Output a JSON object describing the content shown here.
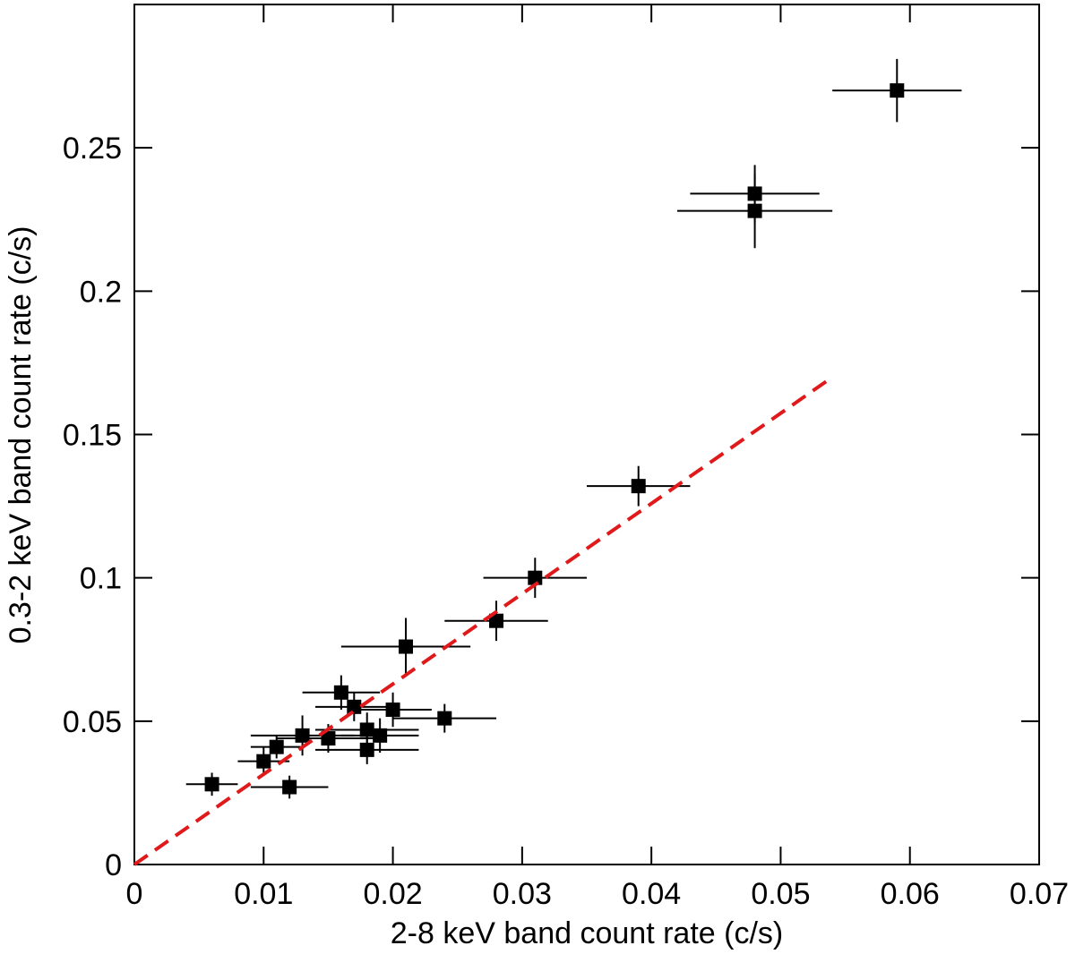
{
  "chart_data": {
    "type": "scatter",
    "xlabel": "2-8 keV band count rate (c/s)",
    "ylabel": "0.3-2 keV band count rate (c/s)",
    "x": [
      0.006,
      0.01,
      0.011,
      0.012,
      0.013,
      0.015,
      0.016,
      0.017,
      0.018,
      0.018,
      0.019,
      0.02,
      0.021,
      0.024,
      0.028,
      0.031,
      0.039,
      0.048,
      0.048,
      0.059
    ],
    "y": [
      0.028,
      0.036,
      0.041,
      0.027,
      0.045,
      0.044,
      0.06,
      0.055,
      0.047,
      0.04,
      0.045,
      0.054,
      0.076,
      0.051,
      0.085,
      0.1,
      0.132,
      0.234,
      0.228,
      0.27
    ],
    "xerr": [
      0.002,
      0.002,
      0.002,
      0.003,
      0.004,
      0.004,
      0.003,
      0.003,
      0.004,
      0.004,
      0.003,
      0.003,
      0.005,
      0.004,
      0.004,
      0.004,
      0.004,
      0.005,
      0.006,
      0.005
    ],
    "yerr": [
      0.004,
      0.005,
      0.004,
      0.004,
      0.007,
      0.005,
      0.006,
      0.005,
      0.006,
      0.005,
      0.006,
      0.006,
      0.01,
      0.005,
      0.007,
      0.007,
      0.007,
      0.01,
      0.013,
      0.011
    ],
    "color": "#000000",
    "fit_line": {
      "x": [
        0,
        0.054
      ],
      "y": [
        0,
        0.17
      ],
      "color": "#e0191b"
    },
    "xlim": [
      0,
      0.07
    ],
    "xticks": [
      0,
      0.01,
      0.02,
      0.03,
      0.04,
      0.05,
      0.06,
      0.07
    ],
    "ylim": [
      0,
      0.3
    ],
    "yticks": [
      0,
      0.05,
      0.1,
      0.15,
      0.2,
      0.25
    ]
  }
}
